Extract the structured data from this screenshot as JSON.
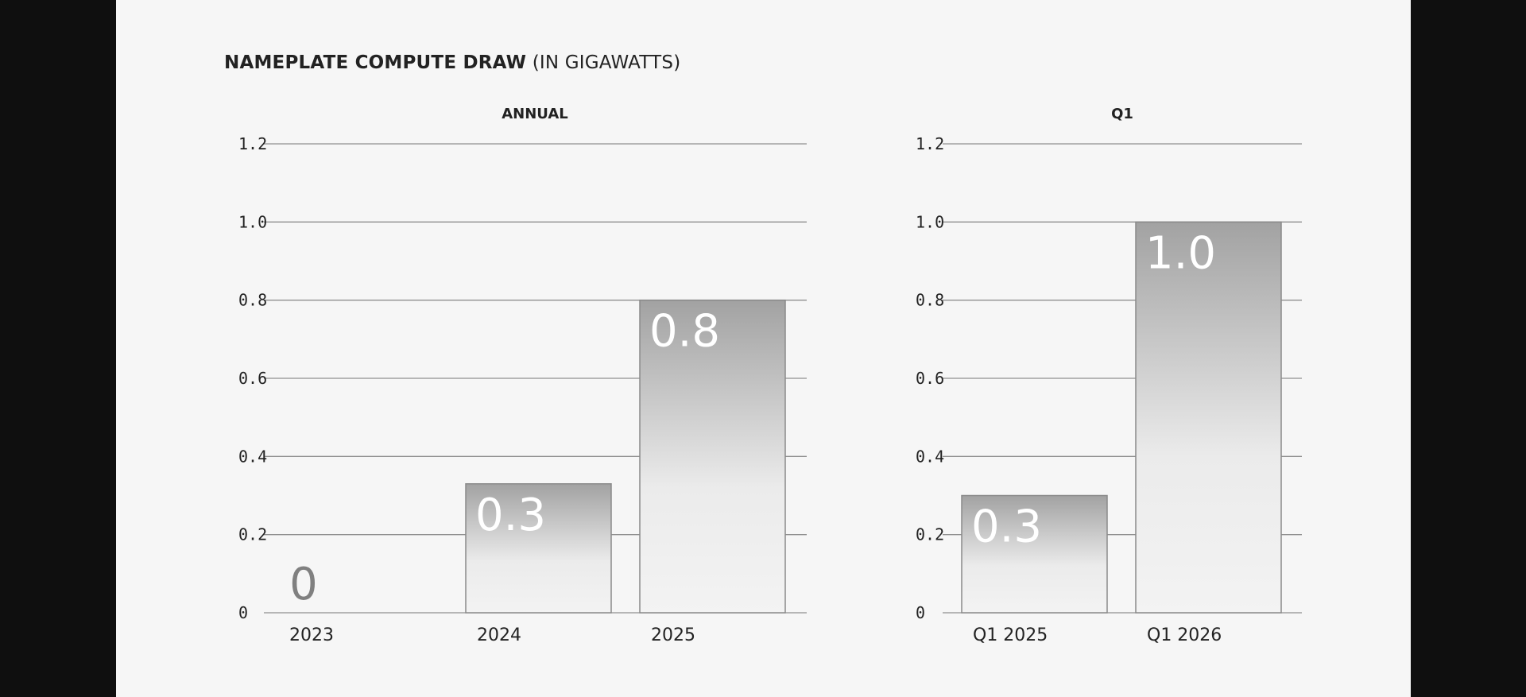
{
  "title": {
    "main": "NAMEPLATE COMPUTE DRAW",
    "sub": "(IN GIGAWATTS)"
  },
  "colors": {
    "page_background": "#f6f6f6",
    "frame": "#0f0f0f",
    "bar_top": "#a2a2a2",
    "bar_bottom": "#f3f3f3",
    "bar_stroke": "#8a8a8a",
    "gridline": "#8f8f8f",
    "text": "#222222",
    "zero_label": "#808080",
    "bar_label": "#ffffff"
  },
  "chart_data": [
    {
      "type": "bar",
      "title": "ANNUAL",
      "categories": [
        "2023",
        "2024",
        "2025"
      ],
      "values": [
        0,
        0.33,
        0.8
      ],
      "value_labels": [
        "0",
        "0.3",
        "0.8"
      ],
      "yticks": [
        "0",
        "0.2",
        "0.4",
        "0.6",
        "0.8",
        "1.0",
        "1.2"
      ],
      "ylim": [
        0,
        1.2
      ],
      "grid": true
    },
    {
      "type": "bar",
      "title": "Q1",
      "categories": [
        "Q1 2025",
        "Q1 2026"
      ],
      "values": [
        0.3,
        1.0
      ],
      "value_labels": [
        "0.3",
        "1.0"
      ],
      "yticks": [
        "0",
        "0.2",
        "0.4",
        "0.6",
        "0.8",
        "1.0",
        "1.2"
      ],
      "ylim": [
        0,
        1.2
      ],
      "grid": true
    }
  ]
}
